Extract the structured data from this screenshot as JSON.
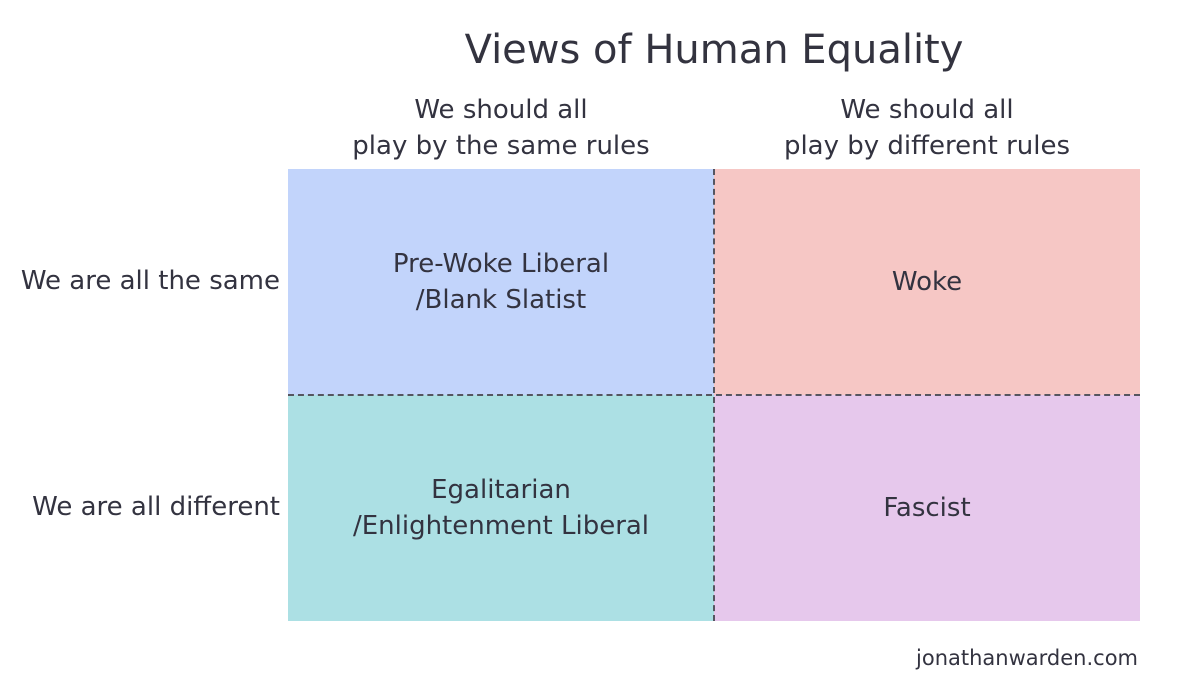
{
  "title": "Views of Human Equality",
  "columns": [
    {
      "line1": "We should all",
      "line2": "play by the same rules"
    },
    {
      "line1": "We should all",
      "line2": "play by different rules"
    }
  ],
  "rows": [
    {
      "label": "We are all the same"
    },
    {
      "label": "We are all different"
    }
  ],
  "quadrants": [
    {
      "line1": "Pre-Woke Liberal",
      "line2": "/Blank Slatist",
      "color": "#c2d4fb"
    },
    {
      "line1": "Woke",
      "line2": "",
      "color": "#f6c7c5"
    },
    {
      "line1": "Egalitarian",
      "line2": "/Enlightenment Liberal",
      "color": "#ace0e4"
    },
    {
      "line1": "Fascist",
      "line2": "",
      "color": "#e6c8ec"
    }
  ],
  "credit": "jonathanwarden.com"
}
